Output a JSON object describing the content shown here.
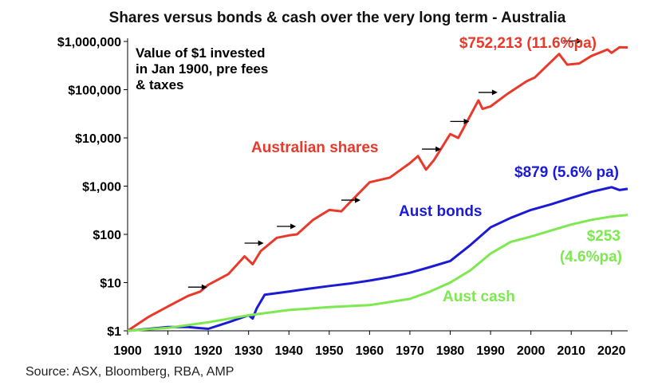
{
  "chart_data": {
    "type": "line",
    "title": "Shares versus bonds & cash over the very long term - Australia",
    "annotation": [
      "Value of $1 invested",
      "in Jan 1900, pre fees",
      "& taxes"
    ],
    "y_scale": "log",
    "ylim": [
      1,
      1000000
    ],
    "xlim": [
      1900,
      2024
    ],
    "x_ticks": [
      1900,
      1910,
      1920,
      1930,
      1940,
      1950,
      1960,
      1970,
      1980,
      1990,
      2000,
      2010,
      2020
    ],
    "y_ticks": [
      1,
      10,
      100,
      1000,
      10000,
      100000,
      1000000
    ],
    "y_tick_labels": [
      "$1",
      "$10",
      "$100",
      "$1,000",
      "$10,000",
      "$100,000",
      "$1,000,000"
    ],
    "grid": false,
    "legend": "none",
    "series": [
      {
        "name": "Australian shares",
        "end_label": "$752,213 (11.6%pa)",
        "color": "#e8392b",
        "points": [
          [
            1900,
            1
          ],
          [
            1905,
            1.9
          ],
          [
            1910,
            3.2
          ],
          [
            1915,
            5.3
          ],
          [
            1918,
            6.5
          ],
          [
            1920,
            9
          ],
          [
            1925,
            15
          ],
          [
            1929,
            35
          ],
          [
            1931,
            24
          ],
          [
            1933,
            45
          ],
          [
            1937,
            85
          ],
          [
            1940,
            95
          ],
          [
            1942,
            100
          ],
          [
            1946,
            200
          ],
          [
            1950,
            320
          ],
          [
            1953,
            300
          ],
          [
            1955,
            450
          ],
          [
            1960,
            1200
          ],
          [
            1965,
            1500
          ],
          [
            1970,
            3000
          ],
          [
            1972,
            4200
          ],
          [
            1974,
            2200
          ],
          [
            1976,
            3500
          ],
          [
            1980,
            12000
          ],
          [
            1982,
            10000
          ],
          [
            1987,
            60000
          ],
          [
            1988,
            40000
          ],
          [
            1990,
            45000
          ],
          [
            1994,
            80000
          ],
          [
            1999,
            150000
          ],
          [
            2001,
            180000
          ],
          [
            2007,
            550000
          ],
          [
            2009,
            330000
          ],
          [
            2012,
            350000
          ],
          [
            2015,
            500000
          ],
          [
            2019,
            680000
          ],
          [
            2020,
            580000
          ],
          [
            2022,
            760000
          ],
          [
            2024,
            752213
          ]
        ]
      },
      {
        "name": "Aust bonds",
        "end_label": "$879 (5.6% pa)",
        "color": "#1b1bd6",
        "points": [
          [
            1900,
            1
          ],
          [
            1910,
            1.2
          ],
          [
            1915,
            1.2
          ],
          [
            1920,
            1.1
          ],
          [
            1925,
            1.5
          ],
          [
            1930,
            2.1
          ],
          [
            1931,
            1.8
          ],
          [
            1932,
            2.9
          ],
          [
            1934,
            5.6
          ],
          [
            1940,
            6.5
          ],
          [
            1945,
            7.5
          ],
          [
            1950,
            8.5
          ],
          [
            1955,
            9.5
          ],
          [
            1960,
            11
          ],
          [
            1965,
            13
          ],
          [
            1970,
            16
          ],
          [
            1975,
            21
          ],
          [
            1980,
            28
          ],
          [
            1985,
            60
          ],
          [
            1990,
            140
          ],
          [
            1995,
            220
          ],
          [
            2000,
            320
          ],
          [
            2005,
            420
          ],
          [
            2010,
            570
          ],
          [
            2015,
            760
          ],
          [
            2020,
            950
          ],
          [
            2022,
            830
          ],
          [
            2024,
            879
          ]
        ]
      },
      {
        "name": "Aust cash",
        "end_label": "$253 (4.6%pa)",
        "end_label_lines": [
          "$253",
          "(4.6%pa)"
        ],
        "color": "#7de84f",
        "points": [
          [
            1900,
            1
          ],
          [
            1910,
            1.15
          ],
          [
            1920,
            1.5
          ],
          [
            1930,
            2.1
          ],
          [
            1940,
            2.7
          ],
          [
            1950,
            3.1
          ],
          [
            1960,
            3.4
          ],
          [
            1970,
            4.6
          ],
          [
            1975,
            6.5
          ],
          [
            1980,
            10
          ],
          [
            1985,
            18
          ],
          [
            1990,
            40
          ],
          [
            1995,
            70
          ],
          [
            2000,
            90
          ],
          [
            2005,
            120
          ],
          [
            2010,
            160
          ],
          [
            2015,
            200
          ],
          [
            2020,
            235
          ],
          [
            2024,
            253
          ]
        ]
      }
    ],
    "arrow_markers": [
      [
        1915,
        5.5
      ],
      [
        1929,
        45
      ],
      [
        1937,
        100
      ],
      [
        1953,
        350
      ],
      [
        1973,
        4000
      ],
      [
        1980,
        15000
      ],
      [
        1987,
        60000
      ],
      [
        2008,
        700000
      ]
    ]
  },
  "source": "Source: ASX, Bloomberg, RBA, AMP"
}
